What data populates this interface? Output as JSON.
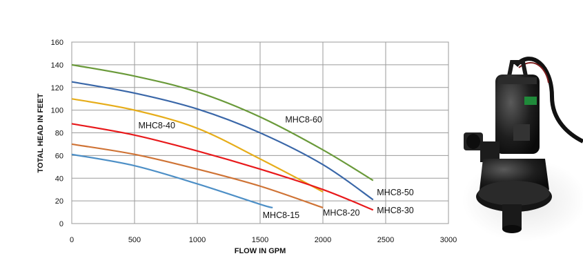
{
  "chart_data": {
    "type": "line",
    "title": "",
    "xlabel": "FLOW IN GPM",
    "ylabel": "TOTAL HEAD IN FEET",
    "xlim": [
      0,
      3000
    ],
    "ylim": [
      0,
      160
    ],
    "xticks": [
      "0",
      "500",
      "1000",
      "1500",
      "2000",
      "2500",
      "3000"
    ],
    "yticks": [
      "0",
      "20",
      "40",
      "60",
      "80",
      "100",
      "120",
      "140",
      "160"
    ],
    "grid": true,
    "series": [
      {
        "name": "MHC8-60",
        "color": "#6a9a3a",
        "x": [
          0,
          500,
          1000,
          1500,
          2000,
          2400
        ],
        "y": [
          140,
          130,
          116,
          94,
          65,
          38
        ]
      },
      {
        "name": "MHC8-50",
        "color": "#3a67a8",
        "x": [
          0,
          500,
          1000,
          1500,
          2000,
          2400
        ],
        "y": [
          125,
          115,
          101,
          80,
          52,
          21
        ]
      },
      {
        "name": "MHC8-40",
        "color": "#e6ad1a",
        "x": [
          0,
          500,
          1000,
          1500,
          2000
        ],
        "y": [
          110,
          100,
          84,
          57,
          28
        ]
      },
      {
        "name": "MHC8-30",
        "color": "#e8191b",
        "x": [
          0,
          500,
          1000,
          1500,
          2000,
          2400
        ],
        "y": [
          88,
          78,
          64,
          48,
          30,
          12
        ]
      },
      {
        "name": "MHC8-20",
        "color": "#cf7335",
        "x": [
          0,
          500,
          1000,
          1500,
          2000
        ],
        "y": [
          70,
          61,
          48,
          33,
          14
        ]
      },
      {
        "name": "MHC8-15",
        "color": "#4d8fc6",
        "x": [
          0,
          500,
          1000,
          1500,
          1600
        ],
        "y": [
          61,
          51,
          35,
          17,
          14
        ]
      }
    ],
    "labels": [
      {
        "text": "MHC8-60",
        "x": 1700,
        "y": 89
      },
      {
        "text": "MHC8-50",
        "x": 2430,
        "y": 25
      },
      {
        "text": "MHC8-40",
        "x": 530,
        "y": 84
      },
      {
        "text": "MHC8-30",
        "x": 2430,
        "y": 9
      },
      {
        "text": "MHC8-20",
        "x": 2000,
        "y": 7
      },
      {
        "text": "MHC8-15",
        "x": 1520,
        "y": 5
      }
    ]
  }
}
